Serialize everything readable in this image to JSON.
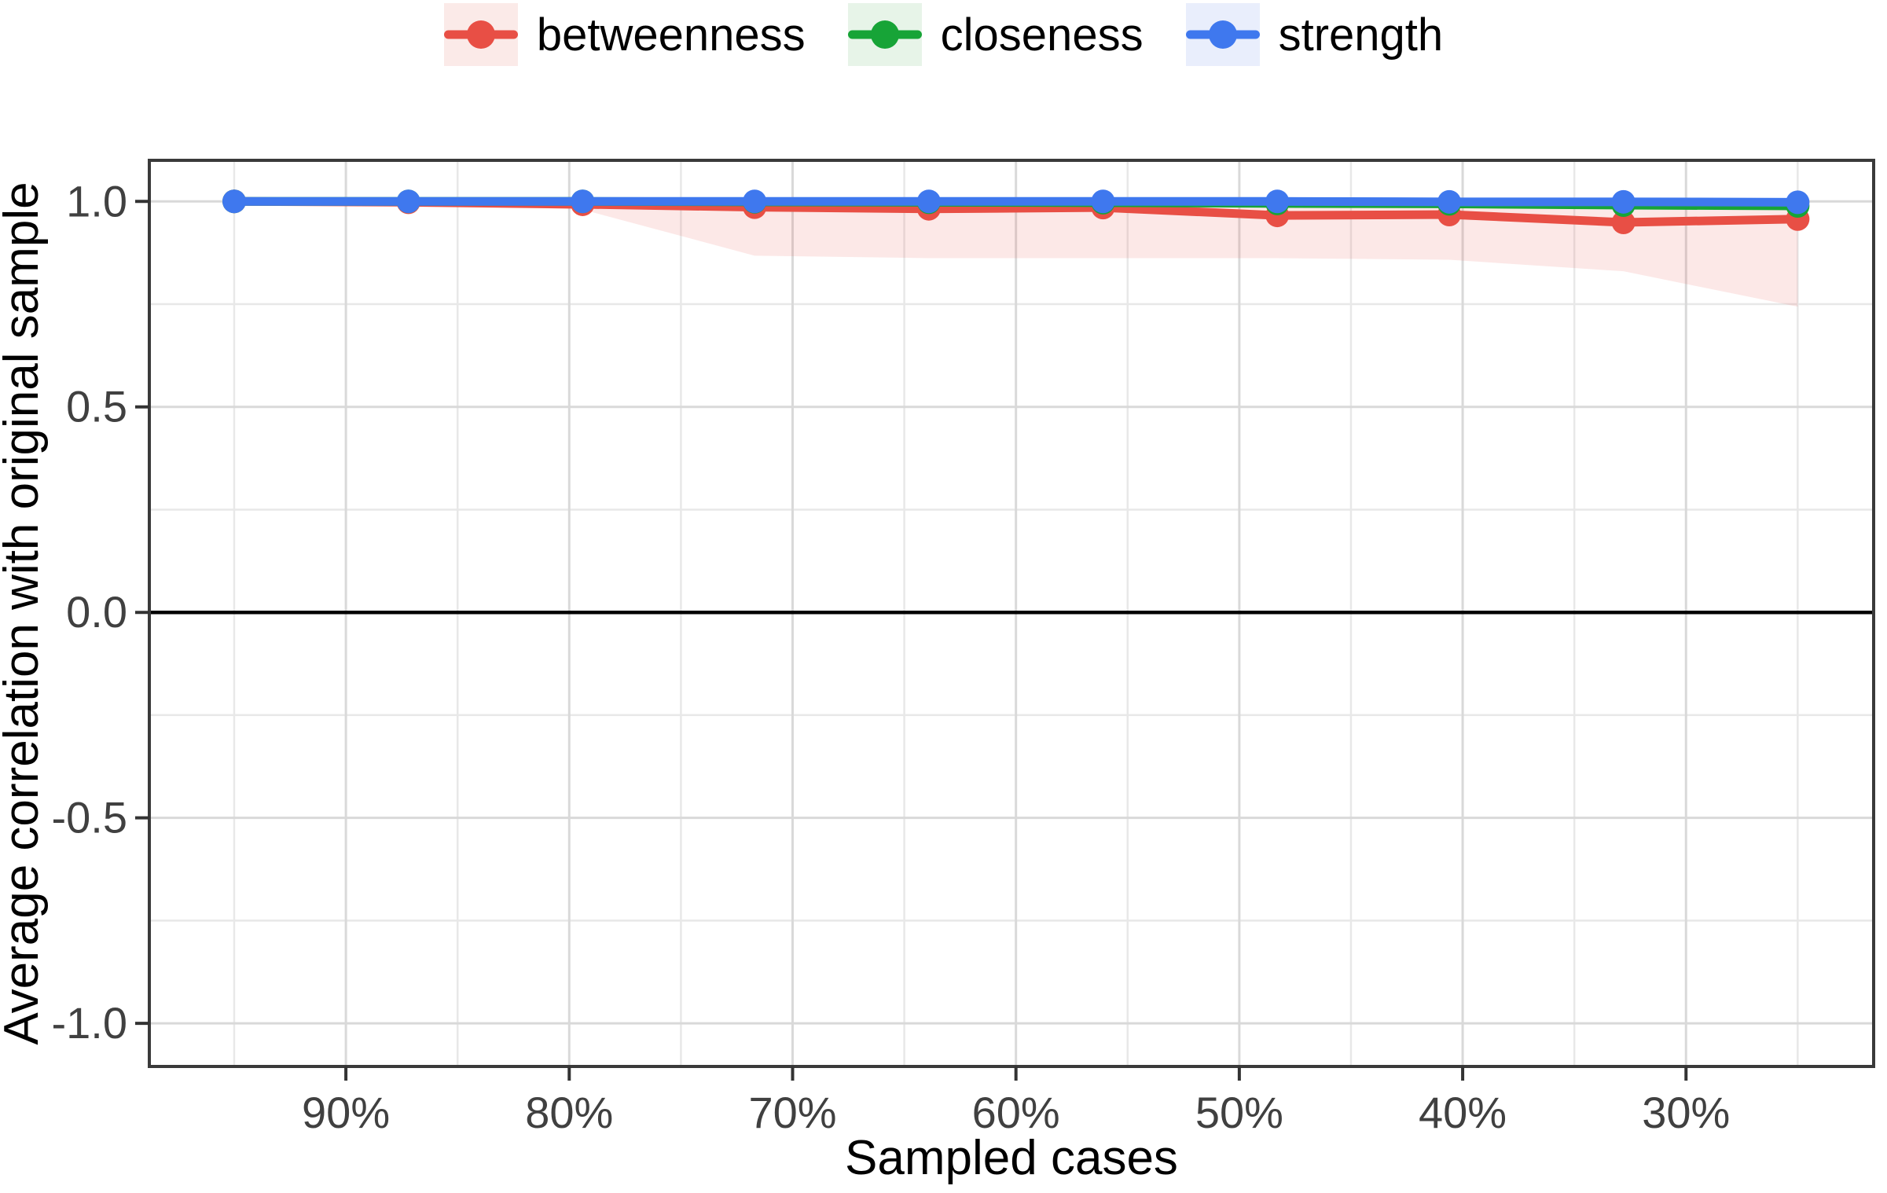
{
  "figure": {
    "xlabel": "Sampled cases",
    "ylabel": "Average correlation with original sample"
  },
  "legend": {
    "position": "top",
    "items": [
      {
        "label": "betweenness",
        "color": "#E84F45",
        "bg": "#FBEAE8"
      },
      {
        "label": "closeness",
        "color": "#17A437",
        "bg": "#E7F4E8"
      },
      {
        "label": "strength",
        "color": "#3F78EE",
        "bg": "#E9EEFC"
      }
    ]
  },
  "chart_data": {
    "type": "line",
    "title": "",
    "xlabel": "Sampled cases",
    "ylabel": "Average correlation with original sample",
    "x_axis_unit": "% of sampled cases (reversed axis)",
    "x": [
      95,
      87.2,
      79.4,
      71.7,
      63.9,
      56.1,
      48.3,
      40.6,
      32.8,
      25
    ],
    "series": [
      {
        "name": "betweenness",
        "color": "#E84F45",
        "values": [
          1.0,
          0.998,
          0.993,
          0.986,
          0.982,
          0.985,
          0.966,
          0.968,
          0.949,
          0.957
        ],
        "ribbon_lower": [
          1.0,
          0.996,
          0.98,
          0.868,
          0.862,
          0.862,
          0.862,
          0.858,
          0.83,
          0.744
        ],
        "ribbon_upper": [
          1.0,
          1.0,
          1.0,
          1.0,
          1.0,
          1.0,
          1.0,
          1.0,
          1.0,
          1.0
        ],
        "ribbon_fill": "rgba(232,79,69,0.13)"
      },
      {
        "name": "closeness",
        "color": "#17A437",
        "values": [
          1.0,
          1.0,
          1.0,
          0.999,
          0.998,
          0.997,
          0.995,
          0.994,
          0.991,
          0.989
        ]
      },
      {
        "name": "strength",
        "color": "#3F78EE",
        "values": [
          1.0,
          1.0,
          1.0,
          1.0,
          1.0,
          1.0,
          1.0,
          0.999,
          0.999,
          0.998
        ]
      }
    ],
    "x_tick_labels": [
      "90%",
      "80%",
      "70%",
      "60%",
      "50%",
      "40%",
      "30%"
    ],
    "x_tick_values": [
      90,
      80,
      70,
      60,
      50,
      40,
      30
    ],
    "x_minor_values": [
      95,
      85,
      75,
      65,
      55,
      45,
      35,
      25
    ],
    "y_tick_labels": [
      "1.0",
      "0.5",
      "0.0",
      "-0.5",
      "-1.0"
    ],
    "y_tick_values": [
      1.0,
      0.5,
      0.0,
      -0.5,
      -1.0
    ],
    "y_minor_values": [
      0.75,
      0.25,
      -0.25,
      -0.75
    ],
    "xlim": [
      98.8,
      21.6
    ],
    "ylim": [
      -1.105,
      1.1
    ],
    "zero_line": 0.0,
    "grid": "on",
    "legend_position": "top"
  }
}
